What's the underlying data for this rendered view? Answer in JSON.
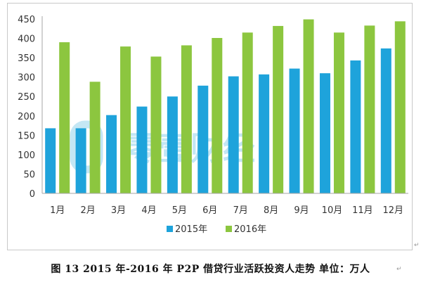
{
  "chart_data": {
    "type": "bar",
    "title": "",
    "xlabel": "",
    "ylabel": "",
    "categories": [
      "1月",
      "2月",
      "3月",
      "4月",
      "5月",
      "6月",
      "7月",
      "8月",
      "9月",
      "10月",
      "11月",
      "12月"
    ],
    "series": [
      {
        "name": "2015年",
        "color": "#1ea3db",
        "values": [
          168,
          168,
          202,
          224,
          250,
          278,
          302,
          307,
          322,
          310,
          343,
          374
        ]
      },
      {
        "name": "2016年",
        "color": "#8cc63f",
        "values": [
          390,
          288,
          379,
          353,
          382,
          401,
          415,
          432,
          449,
          415,
          433,
          444
        ]
      }
    ],
    "ylim": [
      0,
      450
    ],
    "yticks": [
      0,
      50,
      100,
      150,
      200,
      250,
      300,
      350,
      400,
      450
    ],
    "grid": false,
    "legend_position": "bottom-center"
  },
  "watermark": {
    "text": "零壹财经",
    "logo": "01"
  },
  "caption": {
    "text": "图 13   2015 年-2016 年 P2P 借贷行业活跃投资人走势  单位：万人"
  }
}
